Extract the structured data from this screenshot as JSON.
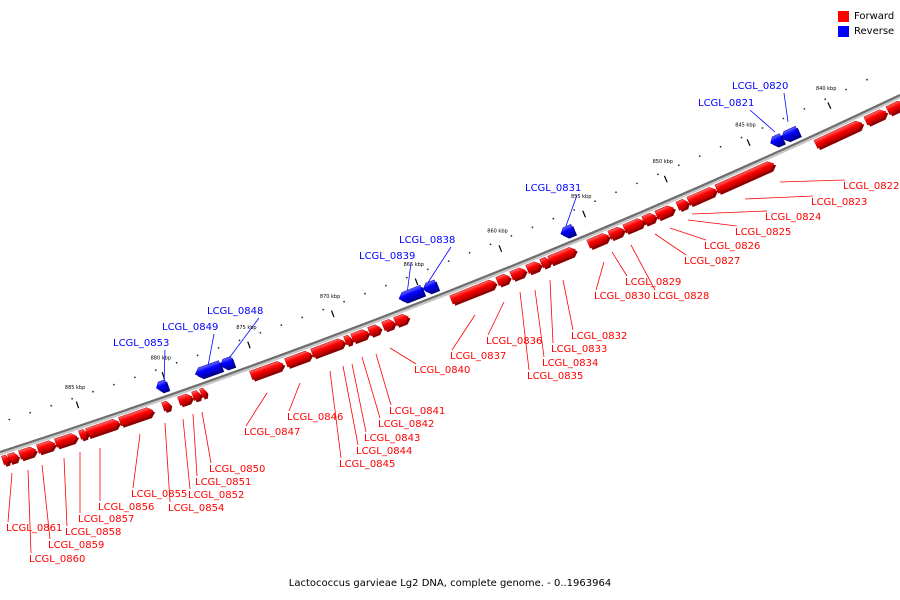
{
  "legend": {
    "forward": {
      "label": "Forward",
      "color": "#ff0000"
    },
    "reverse": {
      "label": "Reverse",
      "color": "#0000ff"
    }
  },
  "caption": "Lactococcus garvieae Lg2 DNA, complete genome. - 0..1963964",
  "ruler": [
    "840 kbp",
    "845 kbp",
    "850 kbp",
    "855 kbp",
    "860 kbp",
    "865 kbp",
    "870 kbp",
    "875 kbp",
    "880 kbp",
    "885 kbp"
  ],
  "genes": [
    {
      "id": "LCGL_0820",
      "strand": "reverse"
    },
    {
      "id": "LCGL_0821",
      "strand": "reverse"
    },
    {
      "id": "LCGL_0822",
      "strand": "forward"
    },
    {
      "id": "LCGL_0823",
      "strand": "forward"
    },
    {
      "id": "LCGL_0824",
      "strand": "forward"
    },
    {
      "id": "LCGL_0825",
      "strand": "forward"
    },
    {
      "id": "LCGL_0826",
      "strand": "forward"
    },
    {
      "id": "LCGL_0827",
      "strand": "forward"
    },
    {
      "id": "LCGL_0828",
      "strand": "forward"
    },
    {
      "id": "LCGL_0829",
      "strand": "forward"
    },
    {
      "id": "LCGL_0830",
      "strand": "forward"
    },
    {
      "id": "LCGL_0831",
      "strand": "reverse"
    },
    {
      "id": "LCGL_0832",
      "strand": "forward"
    },
    {
      "id": "LCGL_0833",
      "strand": "forward"
    },
    {
      "id": "LCGL_0834",
      "strand": "forward"
    },
    {
      "id": "LCGL_0835",
      "strand": "forward"
    },
    {
      "id": "LCGL_0836",
      "strand": "forward"
    },
    {
      "id": "LCGL_0837",
      "strand": "forward"
    },
    {
      "id": "LCGL_0838",
      "strand": "reverse"
    },
    {
      "id": "LCGL_0839",
      "strand": "reverse"
    },
    {
      "id": "LCGL_0840",
      "strand": "forward"
    },
    {
      "id": "LCGL_0841",
      "strand": "forward"
    },
    {
      "id": "LCGL_0842",
      "strand": "forward"
    },
    {
      "id": "LCGL_0843",
      "strand": "forward"
    },
    {
      "id": "LCGL_0844",
      "strand": "forward"
    },
    {
      "id": "LCGL_0845",
      "strand": "forward"
    },
    {
      "id": "LCGL_0846",
      "strand": "forward"
    },
    {
      "id": "LCGL_0847",
      "strand": "forward"
    },
    {
      "id": "LCGL_0848",
      "strand": "reverse"
    },
    {
      "id": "LCGL_0849",
      "strand": "reverse"
    },
    {
      "id": "LCGL_0850",
      "strand": "forward"
    },
    {
      "id": "LCGL_0851",
      "strand": "forward"
    },
    {
      "id": "LCGL_0852",
      "strand": "forward"
    },
    {
      "id": "LCGL_0853",
      "strand": "reverse"
    },
    {
      "id": "LCGL_0854",
      "strand": "forward"
    },
    {
      "id": "LCGL_0855",
      "strand": "forward"
    },
    {
      "id": "LCGL_0856",
      "strand": "forward"
    },
    {
      "id": "LCGL_0857",
      "strand": "forward"
    },
    {
      "id": "LCGL_0858",
      "strand": "forward"
    },
    {
      "id": "LCGL_0859",
      "strand": "forward"
    },
    {
      "id": "LCGL_0860",
      "strand": "forward"
    },
    {
      "id": "LCGL_0861",
      "strand": "forward"
    }
  ]
}
